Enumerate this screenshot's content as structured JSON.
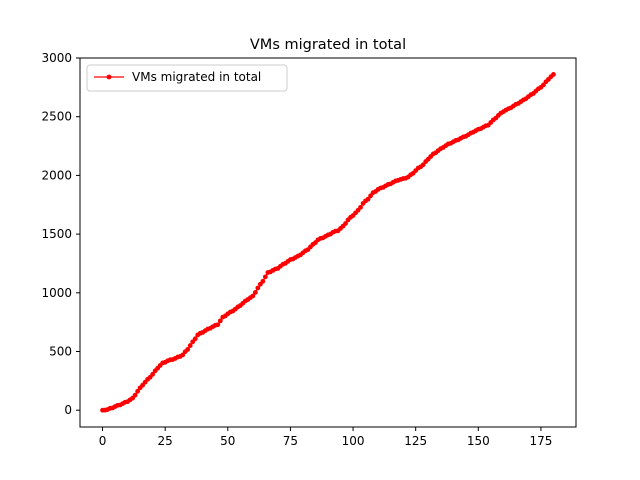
{
  "chart_data": {
    "type": "line",
    "title": "VMs migrated in total",
    "xlabel": "",
    "ylabel": "",
    "xlim": [
      -9,
      189
    ],
    "ylim": [
      -143,
      3000
    ],
    "xticks": [
      0,
      25,
      50,
      75,
      100,
      125,
      150,
      175
    ],
    "yticks": [
      0,
      500,
      1000,
      1500,
      2000,
      2500,
      3000
    ],
    "grid": false,
    "legend_position": "top-left",
    "series": [
      {
        "name": "VMs migrated in total",
        "color": "#ff0000",
        "marker": "circle",
        "anchors_x": [
          0,
          2,
          5,
          8,
          10,
          12,
          14,
          16,
          18,
          20,
          22,
          24,
          26,
          29,
          32,
          34,
          36,
          38,
          40,
          43,
          46,
          48,
          50,
          53,
          56,
          58,
          60,
          62,
          64,
          66,
          68,
          70,
          72,
          75,
          78,
          80,
          82,
          84,
          86,
          88,
          90,
          92,
          94,
          96,
          98,
          100,
          102,
          104,
          106,
          108,
          110,
          112,
          114,
          116,
          118,
          120,
          122,
          124,
          126,
          128,
          130,
          132,
          134,
          136,
          138,
          140,
          142,
          144,
          146,
          148,
          150,
          152,
          154,
          156,
          158,
          160,
          162,
          164,
          166,
          168,
          170,
          172,
          174,
          176,
          178,
          180
        ],
        "anchors_y": [
          0,
          5,
          30,
          55,
          75,
          100,
          160,
          215,
          260,
          305,
          360,
          400,
          420,
          440,
          470,
          520,
          580,
          640,
          665,
          700,
          730,
          790,
          820,
          860,
          910,
          945,
          970,
          1040,
          1100,
          1170,
          1190,
          1210,
          1240,
          1280,
          1310,
          1340,
          1370,
          1410,
          1450,
          1470,
          1490,
          1515,
          1530,
          1565,
          1620,
          1660,
          1700,
          1760,
          1800,
          1850,
          1880,
          1900,
          1920,
          1940,
          1960,
          1970,
          1985,
          2020,
          2060,
          2090,
          2140,
          2180,
          2210,
          2240,
          2265,
          2285,
          2305,
          2325,
          2345,
          2370,
          2390,
          2410,
          2430,
          2470,
          2510,
          2545,
          2565,
          2590,
          2615,
          2640,
          2670,
          2700,
          2735,
          2770,
          2820,
          2860
        ]
      }
    ]
  }
}
